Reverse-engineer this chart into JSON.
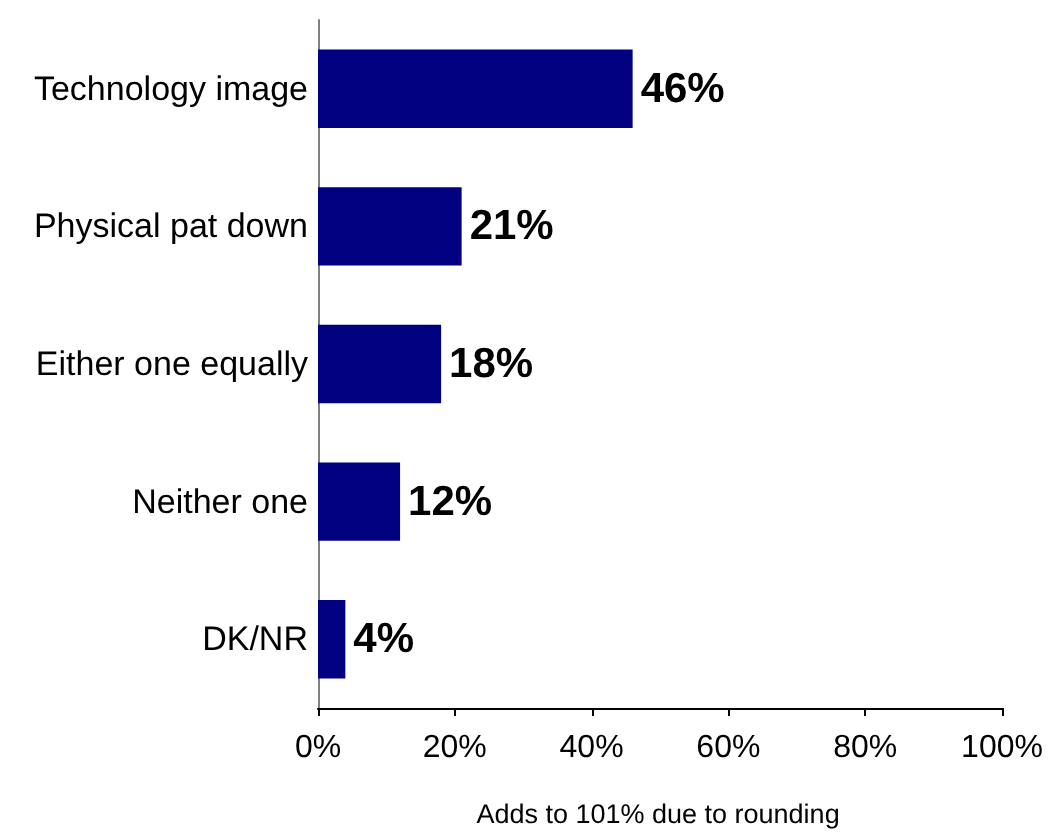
{
  "chart_data": {
    "type": "bar",
    "orientation": "horizontal",
    "categories": [
      "Technology image",
      "Physical pat down",
      "Either one equally",
      "Neither one",
      "DK/NR"
    ],
    "values": [
      46,
      21,
      18,
      12,
      4
    ],
    "color": "#000080",
    "value_labels": [
      "46%",
      "21%",
      "18%",
      "12%",
      "4%"
    ],
    "xlim": [
      0,
      100
    ],
    "xticks": [
      {
        "value": 0,
        "label": "0%"
      },
      {
        "value": 20,
        "label": "20%"
      },
      {
        "value": 40,
        "label": "40%"
      },
      {
        "value": 60,
        "label": "60%"
      },
      {
        "value": 80,
        "label": "80%"
      },
      {
        "value": 100,
        "label": "100%"
      }
    ],
    "annotations": [
      "Adds to 101% due to rounding"
    ]
  }
}
